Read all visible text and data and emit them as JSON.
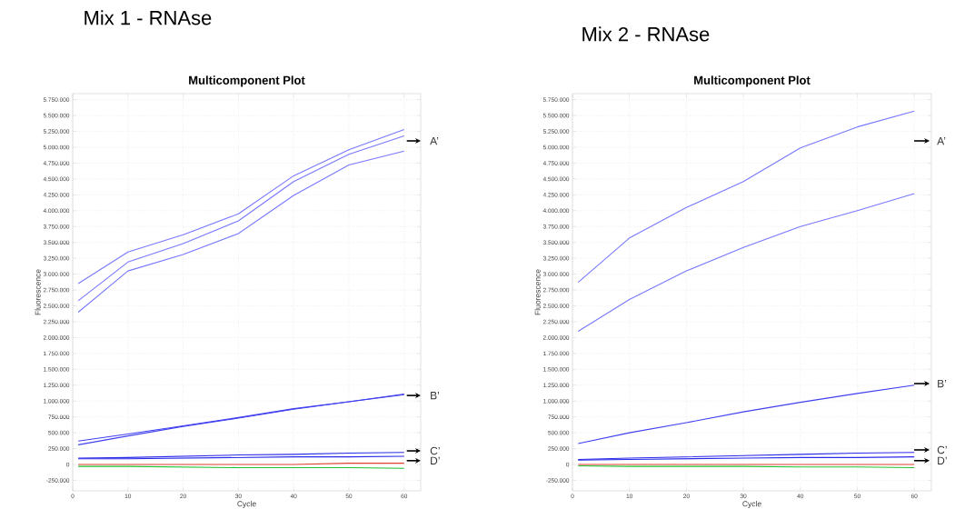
{
  "chart_data": [
    {
      "type": "line",
      "title": "Mix 1 - RNAse",
      "subtitle": "Multicomponent Plot",
      "xlabel": "Cycle",
      "ylabel": "Fluorescence",
      "x": [
        1,
        10,
        20,
        30,
        40,
        50,
        60
      ],
      "series": [
        {
          "color": "#7878ff",
          "values": [
            2850000,
            3350000,
            3620000,
            3950000,
            4550000,
            4960000,
            5280000
          ]
        },
        {
          "color": "#7878ff",
          "values": [
            2580000,
            3190000,
            3480000,
            3840000,
            4460000,
            4890000,
            5180000
          ]
        },
        {
          "color": "#7878ff",
          "values": [
            2400000,
            3050000,
            3310000,
            3640000,
            4240000,
            4720000,
            4940000
          ]
        },
        {
          "color": "#4040f0",
          "values": [
            370000,
            480000,
            610000,
            740000,
            880000,
            990000,
            1100000
          ]
        },
        {
          "color": "#4040f0",
          "values": [
            310000,
            450000,
            600000,
            730000,
            870000,
            990000,
            1110000
          ]
        },
        {
          "color": "#2a2ae8",
          "values": [
            100000,
            110000,
            130000,
            150000,
            160000,
            180000,
            190000
          ]
        },
        {
          "color": "#2a2ae8",
          "values": [
            90000,
            90000,
            100000,
            110000,
            120000,
            120000,
            130000
          ]
        },
        {
          "color": "#e04030",
          "values": [
            0,
            0,
            0,
            0,
            0,
            20000,
            20000
          ]
        },
        {
          "color": "#20c030",
          "values": [
            -30000,
            -30000,
            -40000,
            -50000,
            -50000,
            -50000,
            -60000
          ]
        }
      ],
      "xlim": [
        0,
        63
      ],
      "ylim": [
        -415000,
        5845000
      ],
      "xticks": [
        0,
        10,
        20,
        30,
        40,
        50,
        60
      ],
      "yticks": [
        {
          "value": -250000,
          "label": "-250.000"
        },
        0,
        {
          "value": 250000,
          "label": "250.000"
        },
        {
          "value": 500000,
          "label": "500.000"
        },
        {
          "value": 750000,
          "label": "750.000"
        },
        {
          "value": 1000000,
          "label": "1.000.000"
        },
        {
          "value": 1250000,
          "label": "1.250.000"
        },
        {
          "value": 1500000,
          "label": "1.500.000"
        },
        {
          "value": 1750000,
          "label": "1.750.000"
        },
        {
          "value": 2000000,
          "label": "2.000.000"
        },
        {
          "value": 2250000,
          "label": "2.250.000"
        },
        {
          "value": 2500000,
          "label": "2.500.000"
        },
        {
          "value": 2750000,
          "label": "2.750.000"
        },
        {
          "value": 3000000,
          "label": "3.000.000"
        },
        {
          "value": 3250000,
          "label": "3.250.000"
        },
        {
          "value": 3500000,
          "label": "3.500.000"
        },
        {
          "value": 3750000,
          "label": "3.750.000"
        },
        {
          "value": 4000000,
          "label": "4.000.000"
        },
        {
          "value": 4250000,
          "label": "4.250.000"
        },
        {
          "value": 4500000,
          "label": "4.500.000"
        },
        {
          "value": 4750000,
          "label": "4.750.000"
        },
        {
          "value": 5000000,
          "label": "5.000.000"
        },
        {
          "value": 5250000,
          "label": "5.250.000"
        },
        {
          "value": 5500000,
          "label": "5.500.000"
        },
        {
          "value": 5750000,
          "label": "5.750.000"
        }
      ],
      "grid": true,
      "annotations": [
        "A’",
        "B’",
        "C’",
        "D’"
      ]
    },
    {
      "type": "line",
      "title": "Mix 2 - RNAse",
      "subtitle": "Multicomponent Plot",
      "xlabel": "Cycle",
      "ylabel": "Fluorescence",
      "x": [
        1,
        10,
        20,
        30,
        40,
        50,
        60
      ],
      "series": [
        {
          "color": "#7878ff",
          "values": [
            2870000,
            3570000,
            4050000,
            4460000,
            4990000,
            5320000,
            5570000
          ]
        },
        {
          "color": "#7878ff",
          "values": [
            2100000,
            2600000,
            3050000,
            3420000,
            3750000,
            4000000,
            4270000
          ]
        },
        {
          "color": "#4040f0",
          "values": [
            330000,
            500000,
            660000,
            830000,
            980000,
            1120000,
            1250000
          ]
        },
        {
          "color": "#2a2ae8",
          "values": [
            80000,
            100000,
            120000,
            140000,
            160000,
            180000,
            190000
          ]
        },
        {
          "color": "#2a2ae8",
          "values": [
            70000,
            80000,
            90000,
            100000,
            110000,
            110000,
            120000
          ]
        },
        {
          "color": "#e04030",
          "values": [
            0,
            0,
            0,
            0,
            0,
            0,
            0
          ]
        },
        {
          "color": "#20c030",
          "values": [
            -20000,
            -30000,
            -30000,
            -30000,
            -40000,
            -40000,
            -50000
          ]
        }
      ],
      "xlim": [
        0,
        63
      ],
      "ylim": [
        -415000,
        5845000
      ],
      "xticks": [
        0,
        10,
        20,
        30,
        40,
        50,
        60
      ],
      "yticks": [
        {
          "value": -250000,
          "label": "-250.000"
        },
        0,
        {
          "value": 250000,
          "label": "250.000"
        },
        {
          "value": 500000,
          "label": "500.000"
        },
        {
          "value": 750000,
          "label": "750.000"
        },
        {
          "value": 1000000,
          "label": "1.000.000"
        },
        {
          "value": 1250000,
          "label": "1.250.000"
        },
        {
          "value": 1500000,
          "label": "1.500.000"
        },
        {
          "value": 1750000,
          "label": "1.750.000"
        },
        {
          "value": 2000000,
          "label": "2.000.000"
        },
        {
          "value": 2250000,
          "label": "2.250.000"
        },
        {
          "value": 2500000,
          "label": "2.500.000"
        },
        {
          "value": 2750000,
          "label": "2.750.000"
        },
        {
          "value": 3000000,
          "label": "3.000.000"
        },
        {
          "value": 3250000,
          "label": "3.250.000"
        },
        {
          "value": 3500000,
          "label": "3.500.000"
        },
        {
          "value": 3750000,
          "label": "3.750.000"
        },
        {
          "value": 4000000,
          "label": "4.000.000"
        },
        {
          "value": 4250000,
          "label": "4.250.000"
        },
        {
          "value": 4500000,
          "label": "4.500.000"
        },
        {
          "value": 4750000,
          "label": "4.750.000"
        },
        {
          "value": 5000000,
          "label": "5.000.000"
        },
        {
          "value": 5250000,
          "label": "5.250.000"
        },
        {
          "value": 5500000,
          "label": "5.500.000"
        },
        {
          "value": 5750000,
          "label": "5.750.000"
        }
      ],
      "grid": true,
      "annotations": [
        "A’",
        "B’",
        "C’",
        "D’"
      ]
    }
  ]
}
